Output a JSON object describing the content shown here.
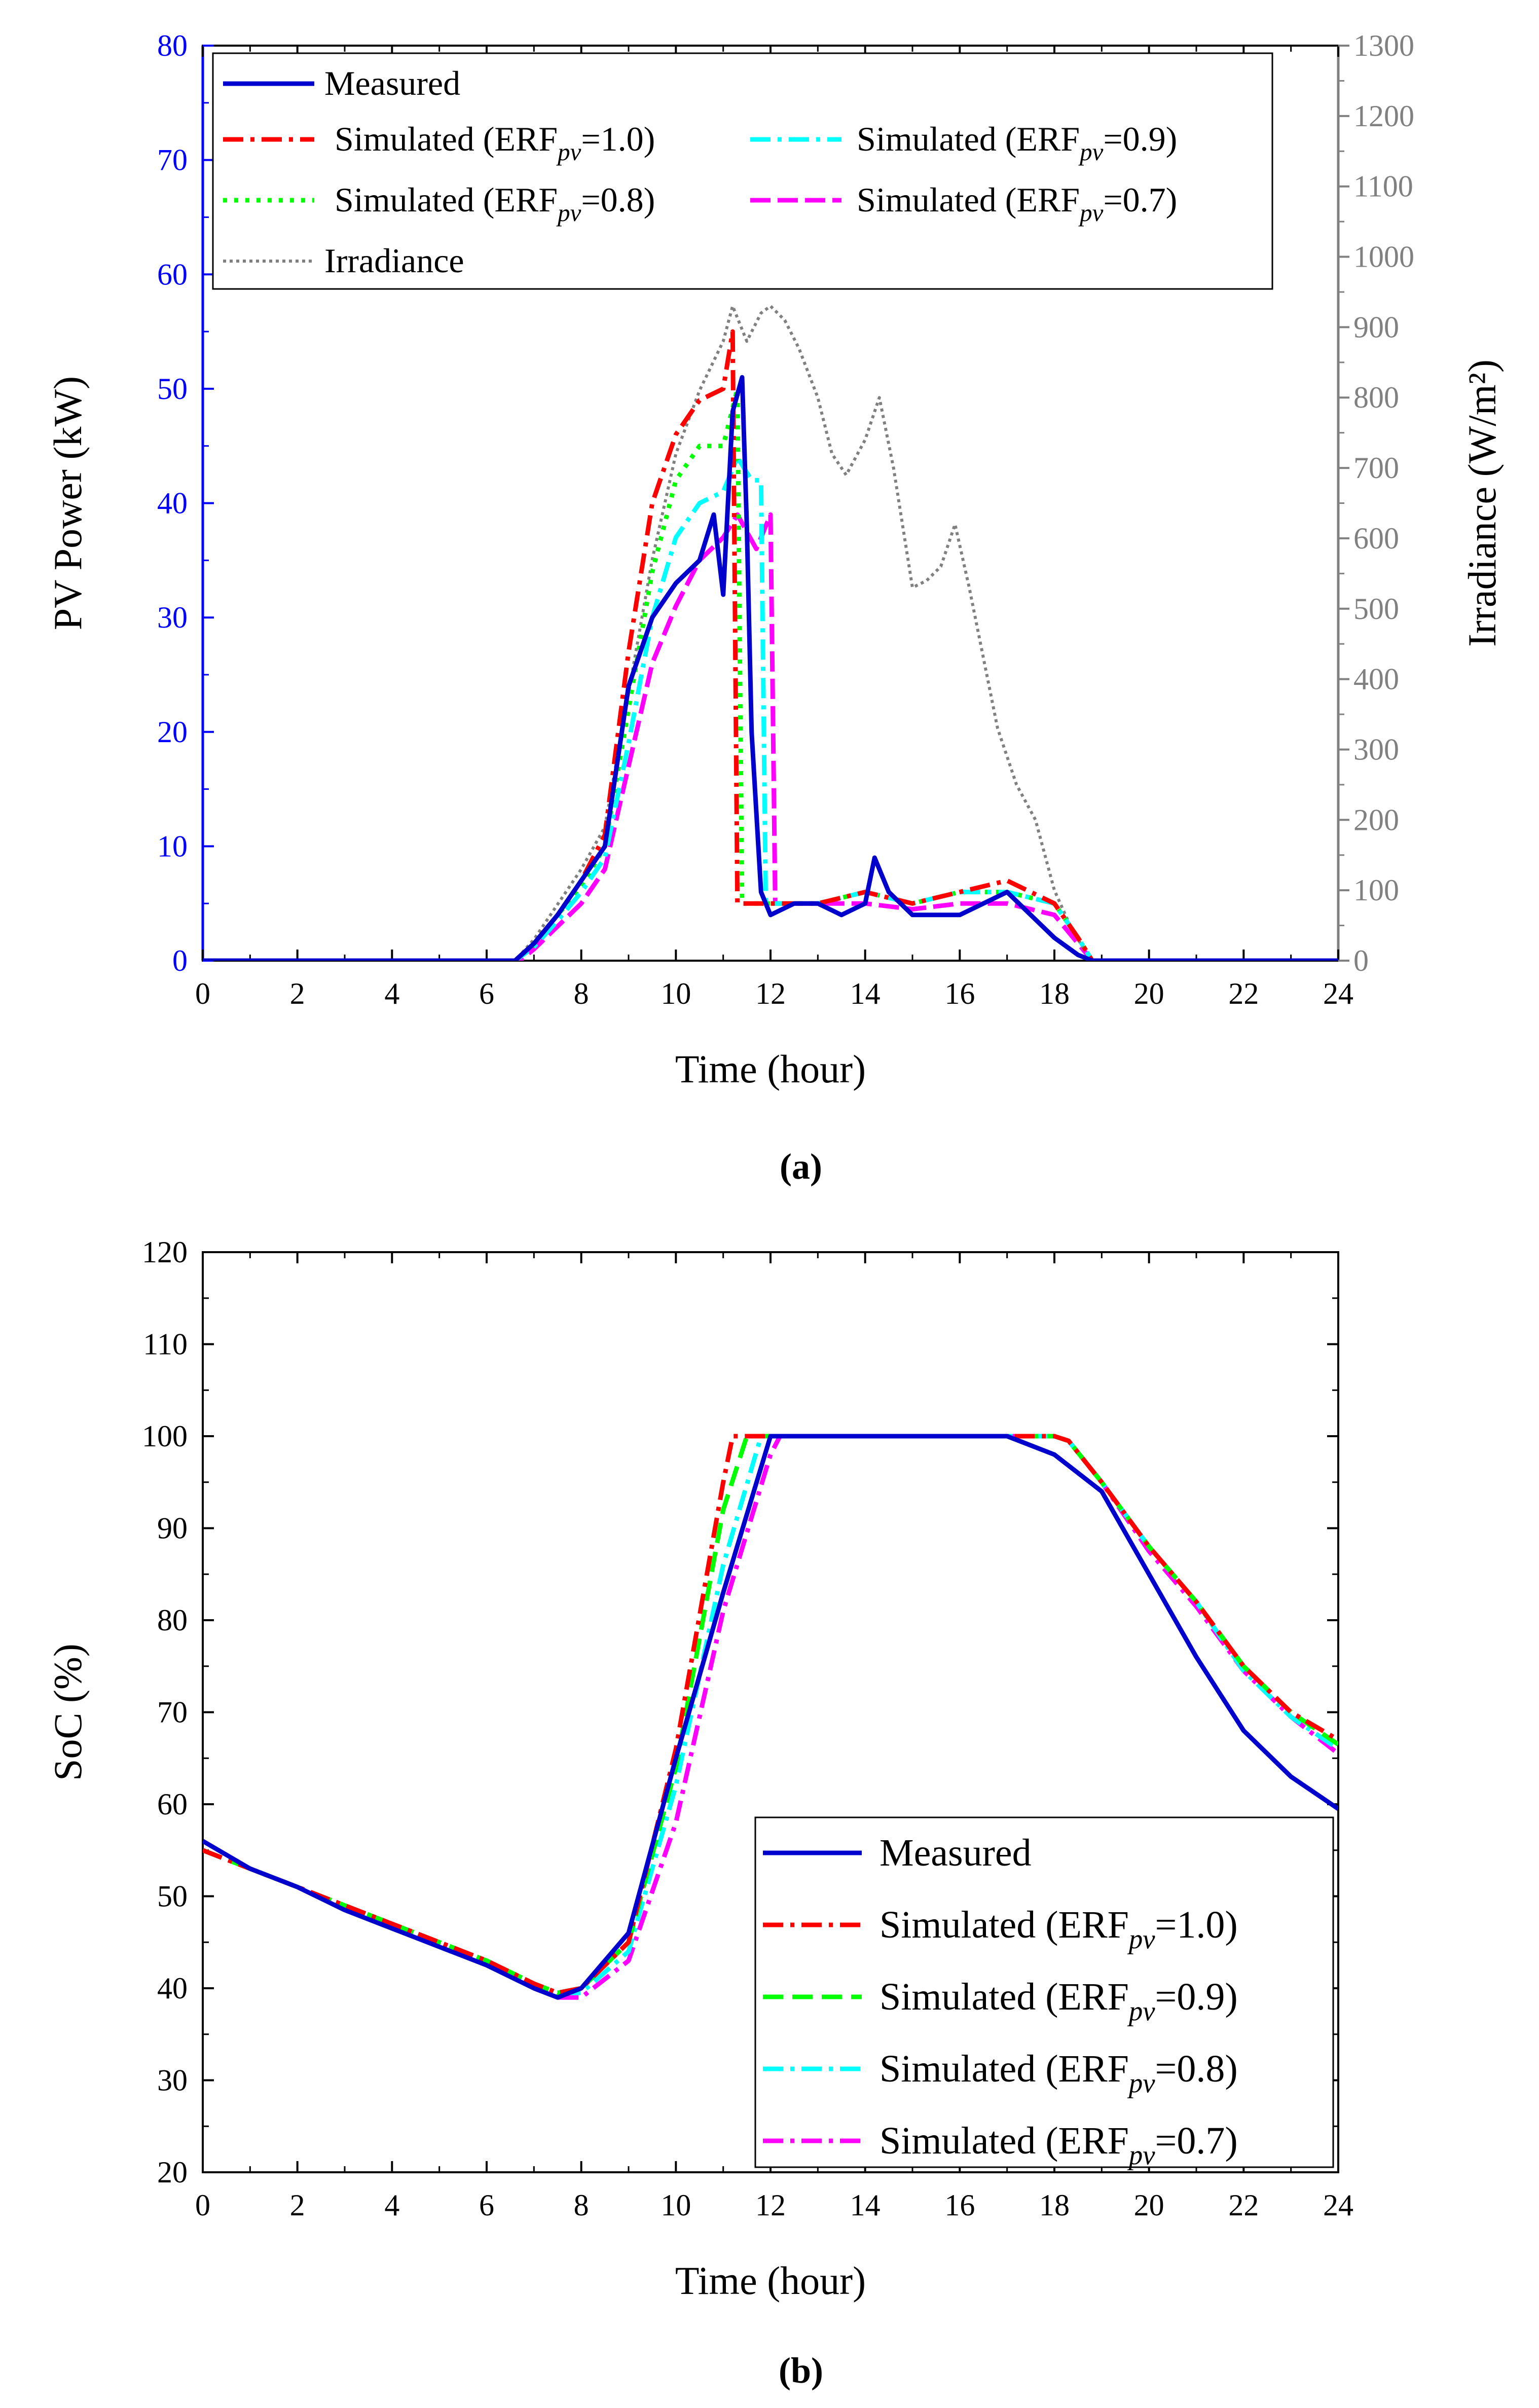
{
  "colors": {
    "axis": "#000000",
    "left_axis_a": "#0000ff",
    "right_axis_a": "#808080",
    "measured": "#0000cd",
    "erf_1_0": "#ff0000",
    "erf_0_9": "#00ffff",
    "erf_0_8": "#00ff00",
    "erf_0_7": "#ff00ff",
    "irradiance": "#808080",
    "panel_a_erf_0_9": "#00ffff",
    "panel_a_erf_0_8": "#00ff00",
    "panel_b_erf_0_9": "#00ff00",
    "panel_b_erf_0_8": "#00ffff"
  },
  "chart_data": [
    {
      "id": "a",
      "type": "line",
      "caption": "(a)",
      "xlabel": "Time (hour)",
      "ylabel": "PV Power (kW)",
      "y2label": "Irradiance (W/m²)",
      "xlim": [
        0,
        24
      ],
      "ylim": [
        0,
        80
      ],
      "y2lim": [
        0,
        1300
      ],
      "xticks": [
        0,
        2,
        4,
        6,
        8,
        10,
        12,
        14,
        16,
        18,
        20,
        22,
        24
      ],
      "yticks": [
        0,
        10,
        20,
        30,
        40,
        50,
        60,
        70,
        80
      ],
      "y2ticks": [
        0,
        100,
        200,
        300,
        400,
        500,
        600,
        700,
        800,
        900,
        1000,
        1100,
        1200,
        1300
      ],
      "legend_position": "top-left",
      "legend": [
        {
          "label": "Measured",
          "series": "measured"
        },
        {
          "label": "Simulated (ERF",
          "sub": "pv",
          "value": "=1.0)",
          "series": "erf_1_0"
        },
        {
          "label": "Simulated (ERF",
          "sub": "pv",
          "value": "=0.9)",
          "series": "erf_0_9"
        },
        {
          "label": "Simulated (ERF",
          "sub": "pv",
          "value": "=0.8)",
          "series": "erf_0_8"
        },
        {
          "label": "Simulated (ERF",
          "sub": "pv",
          "value": "=0.7)",
          "series": "erf_0_7"
        },
        {
          "label": "Irradiance",
          "series": "irradiance"
        }
      ],
      "series": [
        {
          "name": "Measured",
          "key": "measured",
          "axis": "left",
          "x": [
            0,
            6.6,
            7,
            7.5,
            8,
            8.5,
            9,
            9.5,
            10,
            10.5,
            10.8,
            11,
            11.2,
            11.4,
            11.5,
            11.6,
            11.8,
            12,
            12.5,
            13,
            13.5,
            14,
            14.2,
            14.5,
            15,
            15.5,
            16,
            16.5,
            17,
            17.5,
            18,
            18.5,
            18.8,
            24
          ],
          "y": [
            0,
            0,
            1.5,
            4,
            7,
            10,
            24,
            30,
            33,
            35,
            39,
            32,
            48,
            51,
            38,
            20,
            6,
            4,
            5,
            5,
            4,
            5,
            9,
            6,
            4,
            4,
            4,
            5,
            6,
            4,
            2,
            0.5,
            0,
            0
          ]
        },
        {
          "name": "Simulated (ERFpv=1.0)",
          "key": "erf_1_0",
          "axis": "left",
          "x": [
            0,
            6.6,
            7,
            7.5,
            8,
            8.5,
            9,
            9.5,
            10,
            10.5,
            11,
            11.2,
            11.3,
            11.5,
            12,
            13,
            14,
            15,
            16,
            17,
            18,
            18.5,
            18.8,
            24
          ],
          "y": [
            0,
            0,
            1.5,
            4,
            7,
            11,
            27,
            40,
            46,
            49,
            50,
            55,
            5,
            5,
            5,
            5,
            6,
            5,
            6,
            7,
            5,
            2,
            0,
            0
          ]
        },
        {
          "name": "Simulated (ERFpv=0.9)",
          "key": "erf_0_9",
          "axis": "left",
          "x": [
            0,
            6.6,
            7,
            7.5,
            8,
            8.5,
            9,
            9.5,
            10,
            10.5,
            11,
            11.3,
            11.6,
            11.8,
            11.9,
            12.1,
            13,
            14,
            15,
            16,
            17,
            18,
            18.5,
            18.8,
            24
          ],
          "y": [
            0,
            0,
            1.2,
            3.5,
            6,
            9,
            19,
            30,
            37,
            40,
            41,
            44,
            42,
            42,
            5,
            5,
            5,
            6,
            5,
            6,
            6,
            5,
            2,
            0,
            0
          ]
        },
        {
          "name": "Simulated (ERFpv=0.8)",
          "key": "erf_0_8",
          "axis": "left",
          "x": [
            0,
            6.6,
            7,
            7.5,
            8,
            8.5,
            9,
            9.5,
            10,
            10.5,
            11,
            11.3,
            11.4,
            11.6,
            12,
            13,
            14,
            15,
            16,
            17,
            18,
            18.5,
            18.8,
            24
          ],
          "y": [
            0,
            0,
            1.4,
            4,
            6.5,
            10,
            22,
            34,
            42,
            45,
            45,
            50,
            5,
            5,
            5,
            5,
            6,
            5,
            6,
            6,
            5,
            2,
            0,
            0
          ]
        },
        {
          "name": "Simulated (ERFpv=0.7)",
          "key": "erf_0_7",
          "axis": "left",
          "x": [
            0,
            6.7,
            7,
            7.5,
            8,
            8.5,
            9,
            9.5,
            10,
            10.5,
            11,
            11.3,
            11.7,
            12,
            12.1,
            12.5,
            13,
            14,
            15,
            16,
            17,
            18,
            18.5,
            18.8,
            24
          ],
          "y": [
            0,
            0,
            1,
            3,
            5,
            8,
            17,
            26,
            31,
            35,
            37,
            39,
            36,
            39,
            5,
            5,
            5,
            5,
            4.5,
            5,
            5,
            4,
            1.5,
            0,
            0
          ]
        },
        {
          "name": "Irradiance",
          "key": "irradiance",
          "axis": "right",
          "x": [
            0,
            6.6,
            7,
            7.5,
            8,
            8.5,
            9,
            9.5,
            10,
            10.5,
            11,
            11.2,
            11.5,
            11.8,
            12,
            12.3,
            12.6,
            13,
            13.3,
            13.6,
            14,
            14.3,
            14.6,
            15,
            15.3,
            15.6,
            15.9,
            16.2,
            16.5,
            16.8,
            17.2,
            17.6,
            18,
            18.4,
            18.8,
            24
          ],
          "y": [
            0,
            0,
            30,
            80,
            130,
            190,
            380,
            570,
            720,
            810,
            880,
            930,
            880,
            920,
            930,
            910,
            870,
            800,
            720,
            690,
            740,
            800,
            700,
            530,
            540,
            560,
            620,
            530,
            430,
            330,
            250,
            200,
            100,
            40,
            0,
            0
          ]
        }
      ]
    },
    {
      "id": "b",
      "type": "line",
      "caption": "(b)",
      "xlabel": "Time (hour)",
      "ylabel": "SoC (%)",
      "xlim": [
        0,
        24
      ],
      "ylim": [
        20,
        120
      ],
      "xticks": [
        0,
        2,
        4,
        6,
        8,
        10,
        12,
        14,
        16,
        18,
        20,
        22,
        24
      ],
      "yticks": [
        20,
        30,
        40,
        50,
        60,
        70,
        80,
        90,
        100,
        110,
        120
      ],
      "legend_position": "bottom-right",
      "legend": [
        {
          "label": "Measured",
          "series": "measured"
        },
        {
          "label": "Simulated (ERF",
          "sub": "pv",
          "value": "=1.0)",
          "series": "erf_1_0"
        },
        {
          "label": "Simulated (ERF",
          "sub": "pv",
          "value": "=0.9)",
          "series": "erf_0_9"
        },
        {
          "label": "Simulated (ERF",
          "sub": "pv",
          "value": "=0.8)",
          "series": "erf_0_8"
        },
        {
          "label": "Simulated (ERF",
          "sub": "pv",
          "value": "=0.7)",
          "series": "erf_0_7"
        }
      ],
      "series": [
        {
          "name": "Measured",
          "key": "measured",
          "x": [
            0,
            1,
            2,
            3,
            4,
            5,
            6,
            7,
            7.5,
            8,
            9,
            10,
            11,
            12,
            13,
            14,
            15,
            16,
            17,
            18,
            19,
            20,
            21,
            22,
            23,
            24
          ],
          "y": [
            56,
            53,
            51,
            48.5,
            46.5,
            44.5,
            42.5,
            40,
            39,
            40,
            46,
            65,
            83,
            100,
            100,
            100,
            100,
            100,
            100,
            98,
            94,
            85,
            76,
            68,
            63,
            59.5
          ]
        },
        {
          "name": "Simulated (ERFpv=1.0)",
          "key": "erf_1_0",
          "x": [
            0,
            1,
            2,
            3,
            4,
            5,
            6,
            7,
            7.5,
            8,
            9,
            10,
            11,
            11.2,
            12,
            13,
            14,
            15,
            16,
            17,
            18,
            18.3,
            19,
            20,
            21,
            22,
            23,
            24
          ],
          "y": [
            55,
            53,
            51,
            49,
            47,
            45,
            43,
            40.5,
            39.5,
            40,
            45,
            66,
            95,
            100,
            100,
            100,
            100,
            100,
            100,
            100,
            100,
            99.5,
            95,
            88,
            82,
            75,
            70,
            67
          ]
        },
        {
          "name": "Simulated (ERFpv=0.9)",
          "key": "erf_0_9",
          "x": [
            0,
            1,
            2,
            3,
            4,
            5,
            6,
            7,
            7.5,
            8,
            9,
            10,
            11,
            11.5,
            12,
            13,
            14,
            15,
            16,
            17,
            18,
            18.3,
            19,
            20,
            21,
            22,
            23,
            24
          ],
          "y": [
            55,
            53,
            51,
            49,
            47,
            45,
            43,
            40.5,
            39.5,
            40,
            45,
            64,
            92,
            100,
            100,
            100,
            100,
            100,
            100,
            100,
            100,
            99.5,
            95,
            88,
            82,
            75,
            70,
            66.5
          ]
        },
        {
          "name": "Simulated (ERFpv=0.8)",
          "key": "erf_0_8",
          "x": [
            0,
            1,
            2,
            3,
            4,
            5,
            6,
            7,
            7.5,
            8,
            9,
            10,
            11,
            11.8,
            12,
            13,
            14,
            15,
            16,
            17,
            18,
            18.3,
            19,
            20,
            21,
            22,
            23,
            24
          ],
          "y": [
            55,
            53,
            51,
            49,
            47,
            45,
            43,
            40.5,
            39.5,
            39.5,
            44,
            62,
            86,
            100,
            100,
            100,
            100,
            100,
            100,
            100,
            100,
            99.5,
            95,
            88,
            82,
            74.5,
            69.5,
            66
          ]
        },
        {
          "name": "Simulated (ERFpv=0.7)",
          "key": "erf_0_7",
          "x": [
            0,
            1,
            2,
            3,
            4,
            5,
            6,
            7,
            7.5,
            8,
            9,
            10,
            11,
            12,
            12.2,
            13,
            14,
            15,
            16,
            17,
            18,
            18.3,
            19,
            20,
            21,
            22,
            23,
            24
          ],
          "y": [
            55,
            53,
            51,
            49,
            47,
            45,
            43,
            40,
            39,
            39,
            43,
            58,
            81,
            98,
            100,
            100,
            100,
            100,
            100,
            100,
            100,
            99.5,
            95,
            87.5,
            81.5,
            74.5,
            69.5,
            65.5
          ]
        }
      ]
    }
  ]
}
